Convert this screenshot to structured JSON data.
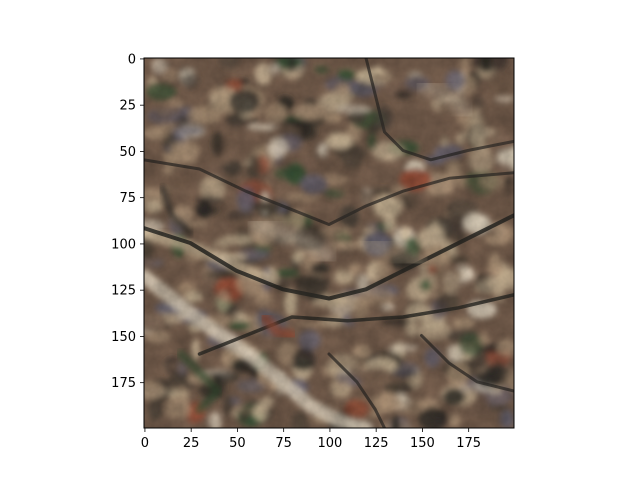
{
  "figure": {
    "background": "#ffffff",
    "axes": {
      "x_ticks": [
        "0",
        "25",
        "50",
        "75",
        "100",
        "125",
        "150",
        "175"
      ],
      "y_ticks": [
        "0",
        "25",
        "50",
        "75",
        "100",
        "125",
        "150",
        "175"
      ]
    },
    "image": {
      "description_type": "aerial satellite terrain tile",
      "palette": {
        "dark": "#2c2a26",
        "shadow": "#4b4238",
        "rock_brown": "#7d6452",
        "tan": "#b79b7e",
        "sand": "#d8c3a2",
        "pale": "#e9dcc6",
        "red_soil": "#a5533b",
        "vegetation": "#3c5a3a",
        "purple_gray": "#6f6a78"
      }
    }
  },
  "chart_data": {
    "type": "heatmap",
    "title": "",
    "xlabel": "",
    "ylabel": "",
    "xlim": [
      0,
      200
    ],
    "ylim": [
      200,
      0
    ],
    "x_ticks": [
      0,
      25,
      50,
      75,
      100,
      125,
      150,
      175
    ],
    "y_ticks": [
      0,
      25,
      50,
      75,
      100,
      125,
      150,
      175
    ],
    "grid": false
  }
}
